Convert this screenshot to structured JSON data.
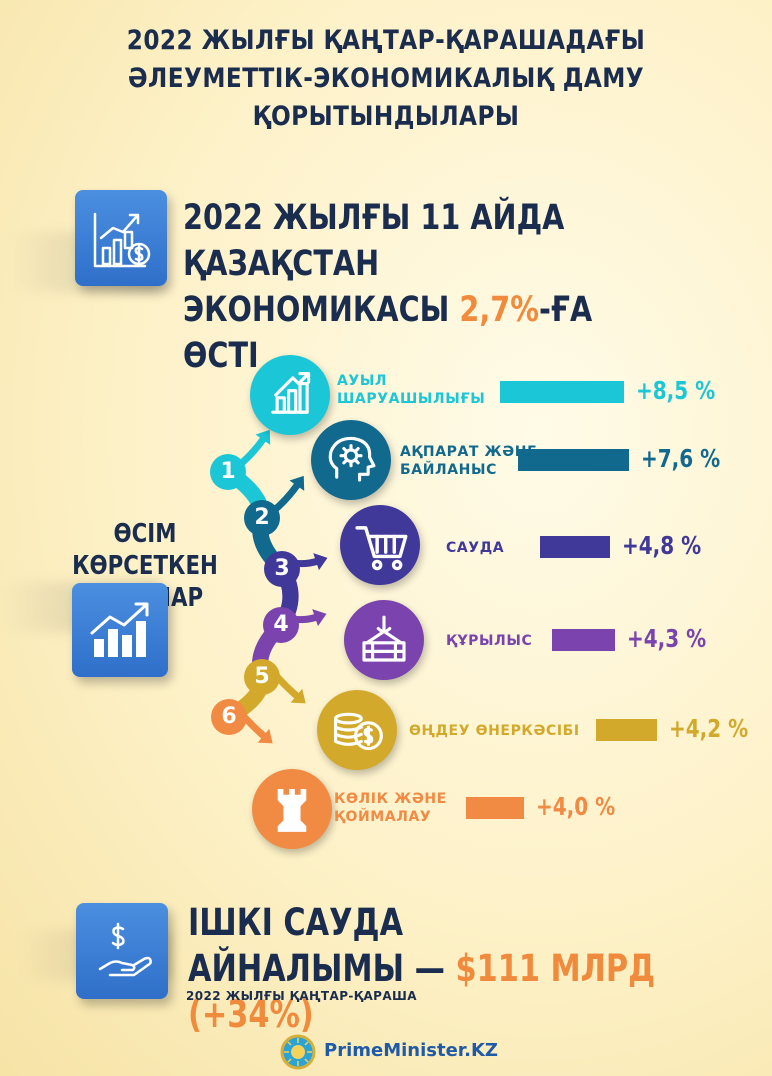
{
  "title": {
    "line1": "2022 ЖЫЛҒЫ ҚАҢТАР-ҚАРАШАДАҒЫ",
    "line2": "ӘЛЕУМЕТТІК-ЭКОНОМИКАЛЫҚ ДАМУ ҚОРЫТЫНДЫЛАРЫ"
  },
  "headline": {
    "line1": "2022  ЖЫЛҒЫ 11 АЙДА ҚАЗАҚСТАН",
    "line2_prefix": "ЭКОНОМИКАСЫ ",
    "line2_value": "2,7%",
    "line2_suffix": "-ҒА ӨСТІ",
    "icon": "growth-chart-dollar-icon"
  },
  "growth_section": {
    "line1": "ӨСІМ КӨРСЕТКЕН",
    "line2": "САЛАЛАР",
    "icon": "rising-bars-icon"
  },
  "chart_data": {
    "type": "bar",
    "orientation": "horizontal",
    "categories": [
      "АУЫЛ ШАРУАШЫЛЫҒЫ",
      "АҚПАРАТ ЖӘНЕ БАЙЛАНЫС",
      "САУДА",
      "ҚҰРЫЛЫС",
      "ӨҢДЕУ ӨНЕРКӘСІБІ",
      "КӨЛІК ЖӘНЕ ҚОЙМАЛАУ"
    ],
    "label_lines": [
      [
        "АУЫЛ",
        "ШАРУАШЫЛЫҒЫ"
      ],
      [
        "АҚПАРАТ ЖӘНЕ",
        "БАЙЛАНЫС"
      ],
      [
        "САУДА"
      ],
      [
        "ҚҰРЫЛЫС"
      ],
      [
        "ӨҢДЕУ ӨНЕРКӘСІБІ"
      ],
      [
        "КӨЛІК ЖӘНЕ",
        "ҚОЙМАЛАУ"
      ]
    ],
    "values": [
      8.5,
      7.6,
      4.8,
      4.3,
      4.2,
      4.0
    ],
    "value_labels": [
      "+8,5 %",
      "+7,6 %",
      "+4,8 %",
      "+4,3 %",
      "+4,2 %",
      "+4,0 %"
    ],
    "numbers": [
      "1",
      "2",
      "3",
      "4",
      "5",
      "6"
    ],
    "colors": [
      "#1bc6d6",
      "#12698e",
      "#40399a",
      "#7a43ae",
      "#d2a92a",
      "#f18a43"
    ],
    "icons": [
      "farm-growth-icon",
      "brain-gear-icon",
      "shopping-cart-icon",
      "crane-construction-icon",
      "coins-dollar-icon",
      "rook-warehouse-icon"
    ]
  },
  "trade": {
    "line1": "ІШКІ САУДА",
    "line2_prefix": "АЙНАЛЫМЫ — ",
    "line2_value": "$111 МЛРД (+34%)",
    "period": "2022 ЖЫЛҒЫ ҚАҢТАР-ҚАРАША",
    "icon": "hand-dollar-icon"
  },
  "footer": {
    "site": "PrimeMinister.KZ",
    "icon": "kazakhstan-emblem-icon"
  }
}
